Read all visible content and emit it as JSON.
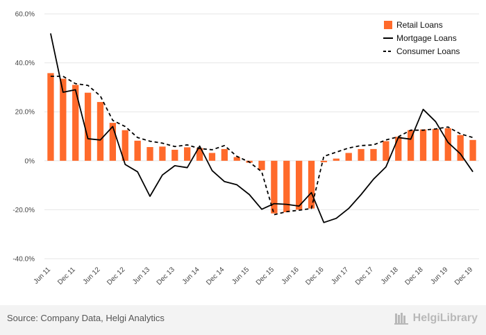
{
  "chart_data": {
    "type": "bar",
    "title": "",
    "xlabel": "",
    "ylabel": "",
    "ylim": [
      -40,
      60
    ],
    "y_ticks": [
      60,
      40,
      20,
      0,
      -20,
      -40
    ],
    "y_tick_labels": [
      "60.0%",
      "40.0%",
      "20.0%",
      "0%",
      "-20.0%",
      "-40.0%"
    ],
    "categories": [
      "Jun 11",
      "Sep 11",
      "Dec 11",
      "Mar 12",
      "Jun 12",
      "Sep 12",
      "Dec 12",
      "Mar 13",
      "Jun 13",
      "Sep 13",
      "Dec 13",
      "Mar 14",
      "Jun 14",
      "Sep 14",
      "Dec 14",
      "Mar 15",
      "Jun 15",
      "Sep 15",
      "Dec 15",
      "Mar 16",
      "Jun 16",
      "Sep 16",
      "Dec 16",
      "Mar 17",
      "Jun 17",
      "Sep 17",
      "Dec 17",
      "Mar 18",
      "Jun 18",
      "Sep 18",
      "Dec 18",
      "Mar 19",
      "Jun 19",
      "Sep 19",
      "Dec 19"
    ],
    "x_tick_labels": [
      "Jun 11",
      "Dec 11",
      "Jun 12",
      "Dec 12",
      "Jun 13",
      "Dec 13",
      "Jun 14",
      "Dec 14",
      "Jun 15",
      "Dec 15",
      "Jun 16",
      "Dec 16",
      "Jun 17",
      "Dec 17",
      "Jun 18",
      "Dec 18",
      "Jun 19",
      "Dec 19"
    ],
    "legend_position": "top-right",
    "series": [
      {
        "name": "Retail Loans",
        "kind": "bar",
        "color": "#ff6a2b",
        "values": [
          35.8,
          33.5,
          31.0,
          27.8,
          24.0,
          15.5,
          12.5,
          8.2,
          5.6,
          5.8,
          4.5,
          5.5,
          5.2,
          3.2,
          4.8,
          1.5,
          -0.8,
          -3.8,
          -21.5,
          -21.0,
          -20.0,
          -19.5,
          -0.6,
          0.9,
          3.2,
          4.8,
          4.8,
          8.0,
          9.8,
          12.5,
          12.8,
          13.0,
          13.3,
          10.5,
          8.5
        ]
      },
      {
        "name": "Mortgage Loans",
        "kind": "line",
        "color": "#000000",
        "dash": "solid",
        "values": [
          52.0,
          28.0,
          29.0,
          9.0,
          8.5,
          14.0,
          -1.5,
          -4.5,
          -14.5,
          -5.8,
          -2.0,
          -2.8,
          6.0,
          -4.0,
          -8.5,
          -9.8,
          -13.8,
          -19.8,
          -17.5,
          -17.8,
          -18.5,
          -13.0,
          -25.2,
          -23.5,
          -19.5,
          -13.8,
          -7.5,
          -2.5,
          9.5,
          8.8,
          21.0,
          16.0,
          7.5,
          2.8,
          -4.5
        ]
      },
      {
        "name": "Consumer Loans",
        "kind": "line",
        "color": "#000000",
        "dash": "dashed",
        "values": [
          34.5,
          34.5,
          31.5,
          30.8,
          26.5,
          16.5,
          14.0,
          9.5,
          8.0,
          7.2,
          5.8,
          6.5,
          5.0,
          4.5,
          6.2,
          1.8,
          -0.5,
          -4.5,
          -22.0,
          -20.8,
          -20.2,
          -19.5,
          1.8,
          3.5,
          5.2,
          6.2,
          6.5,
          8.5,
          9.8,
          12.5,
          12.5,
          13.0,
          13.8,
          11.0,
          9.5
        ]
      }
    ]
  },
  "footer": {
    "source": "Source: Company Data, Helgi Analytics",
    "brand": "HelgiLibrary"
  }
}
